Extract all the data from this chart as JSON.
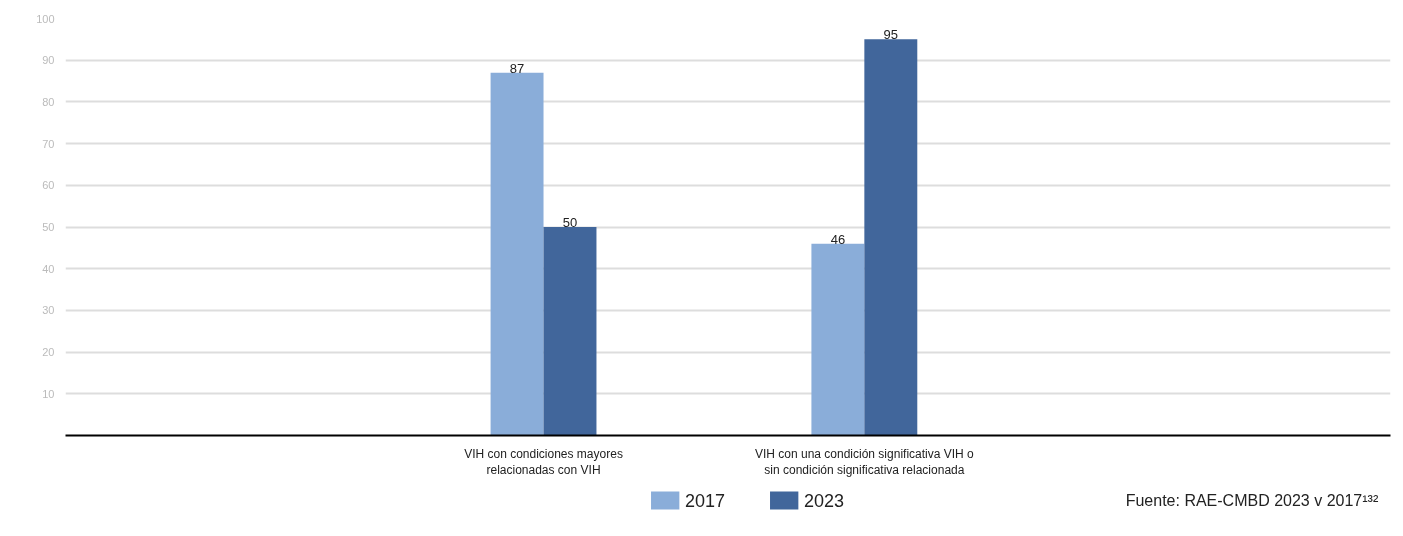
{
  "chart_data": {
    "type": "bar",
    "categories": [
      "VIH con condiciones mayores\nrelacionadas con VIH",
      "VIH con una condición significativa VIH o\nsin condición significativa relacionada"
    ],
    "series": [
      {
        "name": "2017",
        "color": "#8aadd9",
        "values": [
          87,
          46
        ]
      },
      {
        "name": "2023",
        "color": "#41669b",
        "values": [
          50,
          95
        ]
      }
    ],
    "ylim": [
      0,
      100
    ],
    "yticks": [
      10,
      20,
      30,
      40,
      50,
      60,
      70,
      80,
      90,
      100
    ],
    "grid": "y",
    "legend": "bottom",
    "data_labels": true,
    "annotations": [
      "Fuente: RAE-CMBD 2023 v 2017¹³²"
    ]
  }
}
